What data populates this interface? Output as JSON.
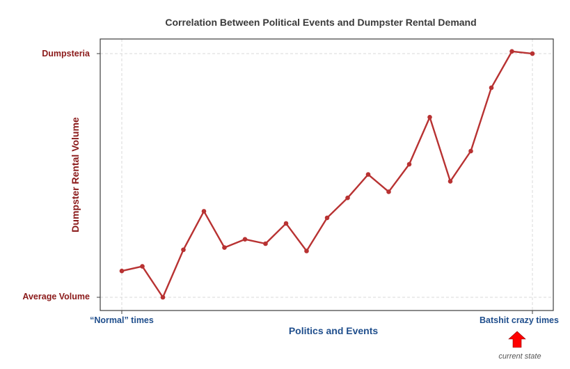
{
  "chart_data": {
    "type": "line",
    "title": "Correlation Between Political Events and Dumpster Rental Demand",
    "xlabel": "Politics and Events",
    "ylabel": "Dumpster Rental Volume",
    "x_tick_labels": [
      "“Normal” times",
      "Batshit crazy times"
    ],
    "y_tick_labels": [
      "Average Volume",
      "Dumpsteria"
    ],
    "ylim": [
      0,
      100
    ],
    "grid": true,
    "legend": "none",
    "line_color": "#b83232",
    "series": [
      {
        "x": [
          0,
          1,
          2,
          3,
          4,
          5,
          6,
          7,
          8,
          9,
          10,
          11,
          12,
          13,
          14,
          15,
          16,
          17,
          18,
          19,
          20
        ],
        "values": [
          10.8,
          12.7,
          0,
          19.5,
          35.3,
          20.4,
          23.8,
          22,
          30.3,
          19,
          32.6,
          40.8,
          50.4,
          43.3,
          54.6,
          73.9,
          47.6,
          60,
          86,
          100.9,
          100
        ]
      }
    ],
    "annotation": {
      "text": "current state",
      "arrow_color": "#ff0000",
      "arrow": "up"
    }
  }
}
